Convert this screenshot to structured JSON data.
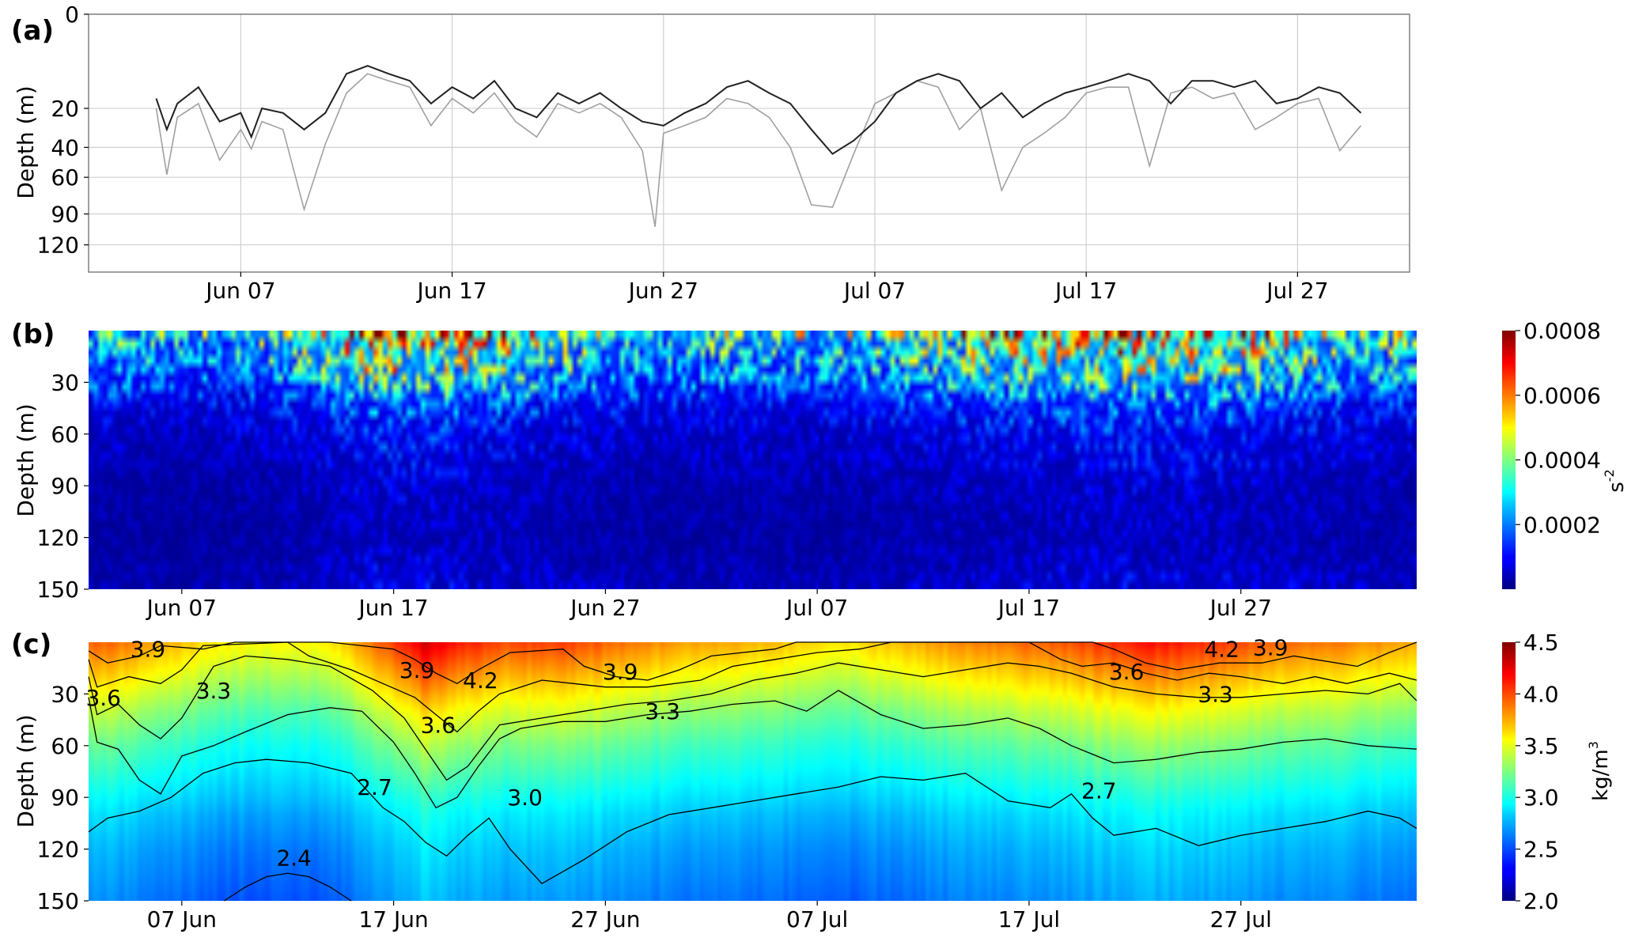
{
  "chart_data": [
    {
      "type": "line",
      "panel_label": "(a)",
      "ylabel": "Depth (m)",
      "x_ticks": [
        "Jun 07",
        "Jun 17",
        "Jun 27",
        "Jul 07",
        "Jul 17",
        "Jul 27"
      ],
      "x_tick_days": [
        7,
        17,
        27,
        37,
        47,
        57
      ],
      "x_range_days": [
        -0.2,
        62.3
      ],
      "y_ticks": [
        0,
        20,
        40,
        60,
        90,
        120
      ],
      "y_range": [
        0,
        150
      ],
      "y_scale": "sqrt",
      "grid": true,
      "series": [
        {
          "color": "#a0a0a0",
          "x": [
            3,
            3.5,
            4,
            5,
            6,
            7,
            7.5,
            8,
            9,
            10,
            11,
            12,
            13,
            14,
            15,
            16,
            17,
            18,
            19,
            20,
            21,
            22,
            23,
            24,
            25,
            26,
            26.6,
            27,
            28,
            29,
            30,
            31,
            32,
            33,
            34,
            35,
            36,
            37,
            38,
            39,
            40,
            41,
            42,
            43,
            44,
            45,
            46,
            47,
            48,
            49,
            50,
            51,
            52,
            53,
            54,
            55,
            56,
            57,
            58,
            59,
            60
          ],
          "y": [
            20,
            58,
            24,
            18,
            48,
            30,
            41,
            26,
            30,
            86,
            38,
            14,
            8,
            10,
            12,
            28,
            16,
            22,
            14,
            26,
            34,
            18,
            22,
            18,
            24,
            42,
            102,
            32,
            28,
            24,
            16,
            18,
            24,
            40,
            82,
            84,
            44,
            18,
            14,
            10,
            12,
            30,
            20,
            70,
            40,
            32,
            24,
            14,
            12,
            12,
            52,
            14,
            12,
            16,
            14,
            30,
            24,
            18,
            16,
            42,
            28
          ]
        },
        {
          "color": "#202020",
          "x": [
            3,
            3.5,
            4,
            5,
            6,
            7,
            7.5,
            8,
            9,
            10,
            11,
            12,
            13,
            14,
            15,
            16,
            17,
            18,
            19,
            20,
            21,
            22,
            23,
            24,
            25,
            26,
            27,
            28,
            29,
            30,
            31,
            32,
            33,
            34,
            35,
            36,
            37,
            38,
            39,
            40,
            41,
            42,
            43,
            44,
            45,
            46,
            47,
            48,
            49,
            50,
            51,
            52,
            53,
            54,
            55,
            56,
            57,
            58,
            59,
            60
          ],
          "y": [
            16,
            30,
            18,
            12,
            26,
            22,
            34,
            20,
            22,
            30,
            22,
            8,
            6,
            8,
            10,
            18,
            12,
            16,
            10,
            20,
            24,
            14,
            18,
            14,
            20,
            26,
            28,
            22,
            18,
            12,
            10,
            14,
            18,
            30,
            44,
            36,
            26,
            14,
            10,
            8,
            10,
            20,
            14,
            24,
            18,
            14,
            12,
            10,
            8,
            10,
            18,
            10,
            10,
            12,
            10,
            18,
            16,
            12,
            14,
            22
          ]
        }
      ]
    },
    {
      "type": "heatmap",
      "panel_label": "(b)",
      "ylabel": "Depth (m)",
      "colorbar_label": "s",
      "colorbar_label_superscript": "-2",
      "colorbar_ticks": [
        "0.0002",
        "0.0004",
        "0.0006",
        "0.0008"
      ],
      "colorbar_tick_values": [
        0.0002,
        0.0004,
        0.0006,
        0.0008
      ],
      "value_range": [
        0,
        0.0008
      ],
      "x_ticks": [
        "Jun 07",
        "Jun 17",
        "Jun 27",
        "Jul 07",
        "Jul 17",
        "Jul 27"
      ],
      "x_tick_days": [
        7,
        17,
        27,
        37,
        47,
        57
      ],
      "x_range_days": [
        2.6,
        65.3
      ],
      "y_ticks": [
        30,
        60,
        90,
        120,
        150
      ],
      "y_range": [
        0,
        150
      ],
      "colormap": "jet",
      "depth_profile": {
        "depth": [
          0,
          5,
          15,
          30,
          45,
          60,
          90,
          120,
          150
        ],
        "value": [
          0.0005,
          0.00035,
          0.0003,
          0.00022,
          0.00012,
          8e-05,
          5e-05,
          4e-05,
          6e-05
        ]
      },
      "time_modulation": {
        "day": [
          3,
          8,
          13,
          16,
          19,
          22,
          25,
          29,
          33,
          37,
          41,
          45,
          48,
          51,
          54,
          57,
          60,
          65
        ],
        "factor": [
          0.8,
          0.7,
          1.0,
          1.5,
          1.4,
          1.3,
          1.0,
          0.8,
          0.9,
          0.8,
          1.0,
          1.2,
          1.3,
          1.5,
          1.4,
          1.3,
          1.1,
          0.9
        ]
      }
    },
    {
      "type": "heatmap",
      "panel_label": "(c)",
      "ylabel": "Depth (m)",
      "colorbar_label": "kg/m",
      "colorbar_label_superscript": "3",
      "colorbar_ticks": [
        "2.0",
        "2.5",
        "3.0",
        "3.5",
        "4.0",
        "4.5"
      ],
      "colorbar_tick_values": [
        2.0,
        2.5,
        3.0,
        3.5,
        4.0,
        4.5
      ],
      "value_range": [
        2.0,
        4.5
      ],
      "x_ticks": [
        "07 Jun",
        "17 Jun",
        "27 Jun",
        "07 Jul",
        "17 Jul",
        "27 Jul"
      ],
      "x_tick_days": [
        7,
        17,
        27,
        37,
        47,
        57
      ],
      "x_range_days": [
        2.6,
        65.3
      ],
      "y_ticks": [
        30,
        60,
        90,
        120,
        150
      ],
      "y_range": [
        0,
        150
      ],
      "colormap": "jet",
      "contour_labels": [
        "3.9",
        "3.6",
        "3.3",
        "3.9",
        "4.2",
        "3.6",
        "3.0",
        "3.9",
        "3.3",
        "2.7",
        "2.4",
        "2.7",
        "3.6",
        "3.3",
        "4.2",
        "3.9"
      ],
      "contour_label_points": [
        {
          "day": 5.4,
          "depth": 4
        },
        {
          "day": 3.3,
          "depth": 32
        },
        {
          "day": 8.5,
          "depth": 28
        },
        {
          "day": 18.1,
          "depth": 16
        },
        {
          "day": 21.1,
          "depth": 22
        },
        {
          "day": 19.1,
          "depth": 48
        },
        {
          "day": 23.2,
          "depth": 90
        },
        {
          "day": 27.7,
          "depth": 17
        },
        {
          "day": 29.7,
          "depth": 40
        },
        {
          "day": 16.1,
          "depth": 84
        },
        {
          "day": 12.3,
          "depth": 125
        },
        {
          "day": 50.3,
          "depth": 86
        },
        {
          "day": 51.6,
          "depth": 17
        },
        {
          "day": 55.8,
          "depth": 30
        },
        {
          "day": 56.1,
          "depth": 4
        },
        {
          "day": 58.4,
          "depth": 3
        }
      ],
      "isolines": [
        {
          "level": 3.9,
          "day": [
            2.6,
            3.5,
            5,
            6,
            8,
            9.5,
            14,
            15.5,
            17,
            18,
            19,
            20,
            21,
            22.5,
            25,
            26,
            27.5,
            29,
            30.5,
            32,
            35,
            36,
            38,
            50,
            51,
            52.5,
            54,
            56,
            58,
            59.5,
            60.5,
            62.5,
            64,
            65.3
          ],
          "depth": [
            5,
            12,
            8,
            2,
            4,
            0,
            0,
            2,
            4,
            10,
            18,
            24,
            16,
            6,
            4,
            14,
            20,
            22,
            16,
            8,
            4,
            0,
            0,
            0,
            4,
            12,
            16,
            12,
            12,
            8,
            10,
            14,
            6,
            0
          ]
        },
        {
          "level": 3.6,
          "day": [
            2.6,
            3,
            4.5,
            6,
            7,
            8,
            12,
            13,
            15,
            16.5,
            18,
            19,
            20,
            21,
            22,
            23,
            24,
            25.5,
            27,
            29,
            31.5,
            33,
            35,
            37,
            39,
            40.5,
            47,
            48.5,
            49.5,
            51,
            52.5,
            54,
            55.5,
            57,
            59,
            60.5,
            62,
            64,
            65.3
          ],
          "depth": [
            10,
            26,
            20,
            24,
            16,
            2,
            0,
            8,
            16,
            24,
            32,
            42,
            52,
            40,
            30,
            26,
            22,
            24,
            26,
            26,
            22,
            14,
            10,
            6,
            4,
            0,
            0,
            10,
            14,
            12,
            18,
            22,
            18,
            20,
            24,
            20,
            24,
            18,
            22
          ]
        },
        {
          "level": 3.3,
          "day": [
            2.6,
            3,
            4,
            5,
            6,
            7,
            8.5,
            10,
            12,
            14,
            16,
            17.5,
            18.5,
            19.5,
            20.5,
            22,
            24,
            26,
            28,
            30,
            32,
            34,
            36,
            38,
            40,
            42,
            44,
            46,
            47.5,
            49,
            51,
            53,
            55,
            57,
            59,
            61,
            63,
            64.5,
            65.3
          ],
          "depth": [
            20,
            42,
            36,
            48,
            56,
            44,
            14,
            8,
            10,
            14,
            28,
            44,
            62,
            80,
            72,
            48,
            44,
            40,
            36,
            34,
            30,
            22,
            18,
            12,
            16,
            20,
            16,
            12,
            14,
            18,
            26,
            30,
            32,
            32,
            30,
            28,
            30,
            24,
            34
          ]
        },
        {
          "level": 3.0,
          "day": [
            2.6,
            3,
            4,
            5,
            6,
            7,
            8.5,
            10,
            12,
            14,
            15.5,
            17,
            18,
            19,
            20,
            21,
            22,
            23,
            25,
            27,
            29,
            31,
            33,
            35,
            36.5,
            38,
            40,
            42,
            44,
            46,
            47.5,
            49,
            51,
            53,
            55,
            57,
            59,
            61,
            63,
            65.3
          ],
          "depth": [
            32,
            58,
            62,
            80,
            88,
            66,
            60,
            52,
            42,
            38,
            40,
            58,
            76,
            96,
            90,
            72,
            56,
            50,
            46,
            46,
            42,
            40,
            36,
            34,
            40,
            28,
            42,
            50,
            48,
            44,
            50,
            60,
            70,
            68,
            64,
            62,
            58,
            56,
            60,
            62
          ]
        },
        {
          "level": 2.7,
          "day": [
            2.6,
            3.5,
            5,
            6.5,
            8,
            9.5,
            11,
            13,
            15,
            16.5,
            17.5,
            18.5,
            19.5,
            20.5,
            21.5,
            22.5,
            24,
            26,
            28,
            30,
            32,
            34,
            36,
            38,
            40,
            42,
            44,
            46,
            48,
            49,
            50,
            51,
            53,
            55,
            57,
            59,
            61,
            63,
            64.5,
            65.3
          ],
          "depth": [
            110,
            102,
            98,
            90,
            76,
            70,
            68,
            70,
            76,
            96,
            104,
            116,
            124,
            112,
            102,
            120,
            140,
            126,
            110,
            100,
            96,
            92,
            88,
            84,
            78,
            80,
            76,
            92,
            96,
            88,
            102,
            112,
            108,
            118,
            112,
            108,
            104,
            98,
            102,
            108
          ]
        },
        {
          "level": 2.4,
          "day": [
            9,
            10,
            11,
            12,
            13,
            14,
            15
          ],
          "depth": [
            150,
            142,
            136,
            134,
            136,
            142,
            150
          ]
        }
      ],
      "field_profile": {
        "depth": [
          0,
          20,
          40,
          60,
          80,
          100,
          120,
          150
        ],
        "value": [
          3.8,
          3.55,
          3.3,
          3.1,
          2.95,
          2.8,
          2.7,
          2.6
        ]
      },
      "field_time_offset": {
        "day": [
          3,
          5,
          8,
          11,
          14,
          16,
          18.5,
          20,
          22,
          25,
          28,
          31,
          34,
          36,
          38,
          41,
          44,
          47,
          49,
          51,
          53,
          55,
          57,
          60,
          63,
          65
        ],
        "offset": [
          0.15,
          0.05,
          -0.15,
          -0.25,
          -0.2,
          0.1,
          0.5,
          0.35,
          0.2,
          0.25,
          0.1,
          0.0,
          -0.05,
          -0.1,
          -0.2,
          -0.05,
          0.05,
          0.15,
          0.2,
          0.3,
          0.35,
          0.3,
          0.2,
          0.1,
          0.05,
          0.0
        ]
      }
    }
  ]
}
